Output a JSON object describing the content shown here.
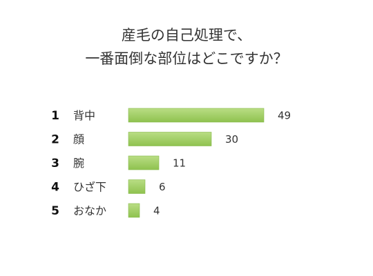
{
  "chart_data": {
    "type": "bar",
    "orientation": "horizontal",
    "title_lines": [
      "産毛の自己処理で、",
      "一番面倒な部位はどこですか？"
    ],
    "ranks": [
      "1",
      "2",
      "3",
      "4",
      "5"
    ],
    "categories": [
      "背中",
      "顔",
      "腕",
      "ひざ下",
      "おなか"
    ],
    "values": [
      49,
      30,
      11,
      6,
      4
    ],
    "value_labels": [
      "49",
      "30",
      "11",
      "6",
      "4"
    ],
    "xlim": [
      0,
      49
    ],
    "grid": false,
    "legend": "none",
    "colors": {
      "bar_top": "#b9dd84",
      "bar_bottom": "#8fc24f",
      "bar_edge": "#86b84a"
    }
  }
}
